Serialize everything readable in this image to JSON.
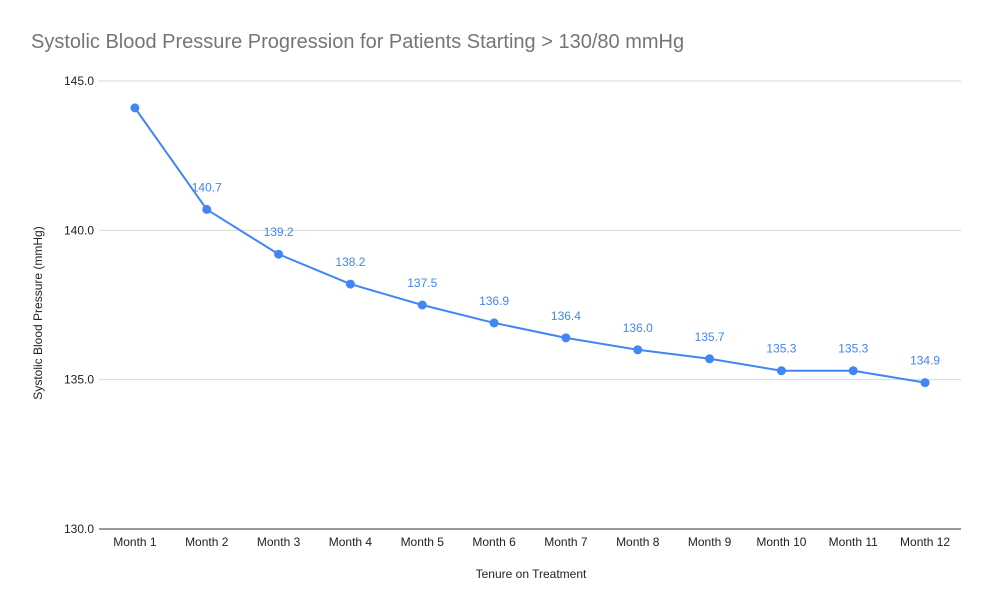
{
  "chart_data": {
    "type": "line",
    "title": "Systolic Blood Pressure Progression for Patients Starting > 130/80 mmHg",
    "xlabel": "Tenure on Treatment",
    "ylabel": "Systolic Blood Pressure (mmHg)",
    "categories": [
      "Month 1",
      "Month 2",
      "Month 3",
      "Month 4",
      "Month 5",
      "Month 6",
      "Month 7",
      "Month 8",
      "Month 9",
      "Month 10",
      "Month 11",
      "Month 12"
    ],
    "series": [
      {
        "values": [
          144.1,
          140.7,
          139.2,
          138.2,
          137.5,
          136.9,
          136.4,
          136.0,
          135.7,
          135.3,
          135.3,
          134.9
        ],
        "data_labels": [
          "",
          "140.7",
          "139.2",
          "138.2",
          "137.5",
          "136.9",
          "136.4",
          "136.0",
          "135.7",
          "135.3",
          "135.3",
          "134.9"
        ]
      }
    ],
    "ylim": [
      130,
      145
    ],
    "yticks": [
      130,
      135,
      140,
      145
    ],
    "ytick_labels": [
      "130.0",
      "135.0",
      "140.0",
      "145.0"
    ],
    "grid": true,
    "legend": "none",
    "colors": {
      "line": "#4285f4",
      "grid": "#d9d9d9",
      "baseline": "#333333",
      "title": "#757575",
      "text": "#222222"
    }
  }
}
